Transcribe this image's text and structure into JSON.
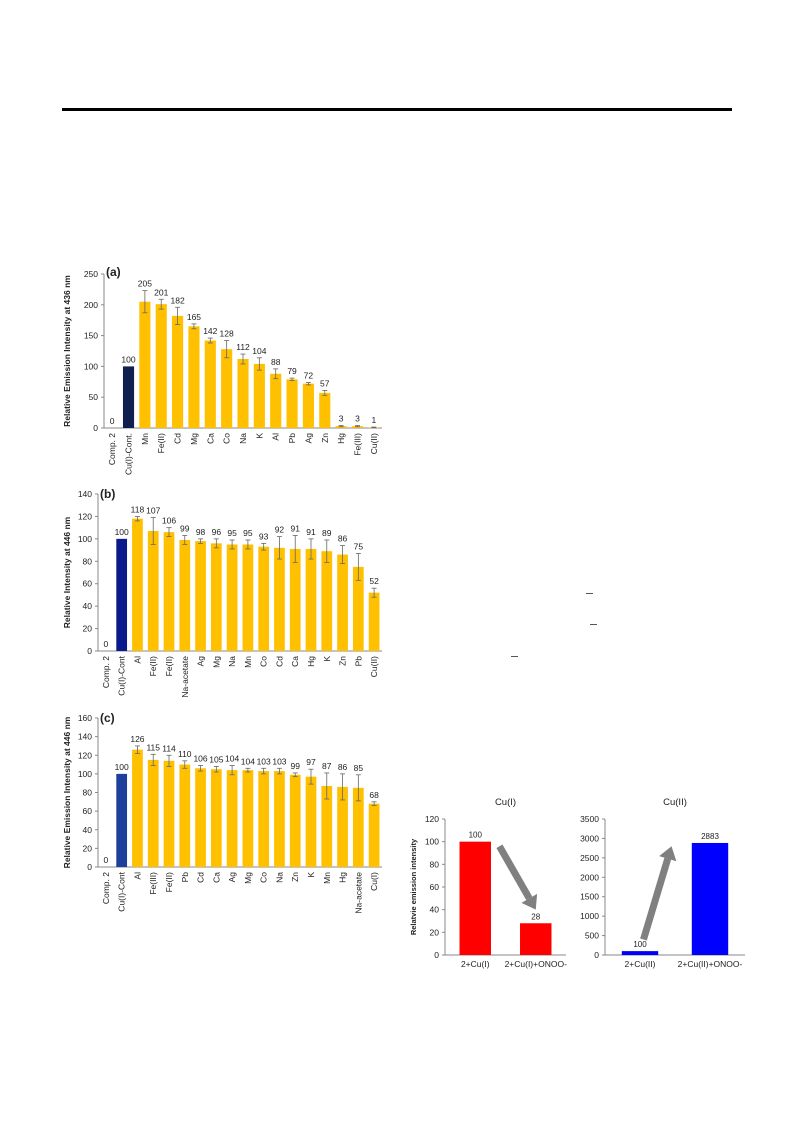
{
  "chart_data": [
    {
      "type": "bar",
      "panel_label": "(a)",
      "ylabel": "Relative Emission Intensity at 436 nm",
      "ylim": [
        0,
        250
      ],
      "yticks": [
        0,
        50,
        100,
        150,
        200,
        250
      ],
      "categories": [
        "Comp. 2",
        "Cu(I)-Cont.",
        "Mn",
        "Fe(II)",
        "Cd",
        "Mg",
        "Ca",
        "Co",
        "Na",
        "K",
        "Al",
        "Pb",
        "Ag",
        "Zn",
        "Hg",
        "Fe(III)",
        "Cu(II)"
      ],
      "values": [
        0,
        100,
        205,
        201,
        182,
        165,
        142,
        128,
        112,
        104,
        88,
        79,
        72,
        57,
        3,
        3,
        1
      ],
      "errors": [
        0,
        0,
        18,
        8,
        14,
        4,
        4,
        14,
        8,
        10,
        8,
        2,
        2,
        4,
        1,
        1,
        0.5
      ],
      "highlight_index": 1,
      "highlight_color": "#0f1f4f",
      "bar_color": "#FFC000"
    },
    {
      "type": "bar",
      "panel_label": "(b)",
      "ylabel": "Relative Intensity at 446 nm",
      "ylim": [
        0,
        140
      ],
      "yticks": [
        0,
        20,
        40,
        60,
        80,
        100,
        120,
        140
      ],
      "categories": [
        "Comp. 2",
        "Cu(I)-Cont",
        "Al",
        "Fe(II)",
        "Fe(II)",
        "Na-acetate",
        "Ag",
        "Mg",
        "Na",
        "Mn",
        "Co",
        "Cd",
        "Ca",
        "Hg",
        "K",
        "Zn",
        "Pb",
        "Cu(II)"
      ],
      "values": [
        0,
        100,
        118,
        107,
        106,
        99,
        98,
        96,
        95,
        95,
        93,
        92,
        91,
        91,
        89,
        86,
        75,
        52
      ],
      "errors": [
        0,
        0,
        2,
        12,
        4,
        4,
        2,
        4,
        4,
        4,
        3,
        10,
        12,
        9,
        10,
        8,
        12,
        4
      ],
      "highlight_index": 1,
      "highlight_color": "#0a1a8c",
      "bar_color": "#FFC000"
    },
    {
      "type": "bar",
      "panel_label": "(c)",
      "ylabel": "Relative Emission Intensity at 446 nm",
      "ylim": [
        0,
        160
      ],
      "yticks": [
        0,
        20,
        40,
        60,
        80,
        100,
        120,
        140,
        160
      ],
      "categories": [
        "Comp. 2",
        "Cu(I)-Cont",
        "Al",
        "Fe(III)",
        "Fe(II)",
        "Pb",
        "Cd",
        "Ca",
        "Ag",
        "Mg",
        "Co",
        "Na",
        "Zn",
        "K",
        "Mn",
        "Hg",
        "Na-acetate",
        "Cu(I)"
      ],
      "values": [
        0,
        100,
        126,
        115,
        114,
        110,
        106,
        105,
        104,
        104,
        103,
        103,
        99,
        97,
        87,
        86,
        85,
        68
      ],
      "errors": [
        0,
        0,
        4,
        6,
        6,
        4,
        3,
        3,
        5,
        2,
        3,
        3,
        2,
        8,
        14,
        14,
        14,
        2
      ],
      "highlight_index": 1,
      "highlight_color": "#1f3f9c",
      "bar_color": "#FFC000"
    },
    {
      "type": "bar",
      "title": "Cu(I)",
      "ylabel": "Relatvie emission intensity",
      "ylim": [
        0,
        120
      ],
      "yticks": [
        0,
        20,
        40,
        60,
        80,
        100,
        120
      ],
      "categories": [
        "2+Cu(I)",
        "2+Cu(I)+ONOO-"
      ],
      "values": [
        100,
        28
      ],
      "bar_color": "#ff0000",
      "arrow": "down",
      "arrow_color": "#808080"
    },
    {
      "type": "bar",
      "title": "Cu(II)",
      "ylabel": "",
      "ylim": [
        0,
        3500
      ],
      "yticks": [
        0,
        500,
        1000,
        1500,
        2000,
        2500,
        3000,
        3500
      ],
      "categories": [
        "2+Cu(II)",
        "2+Cu(II)+ONOO-"
      ],
      "values": [
        100,
        2883
      ],
      "bar_color": "#0000ff",
      "arrow": "up",
      "arrow_color": "#808080"
    }
  ]
}
